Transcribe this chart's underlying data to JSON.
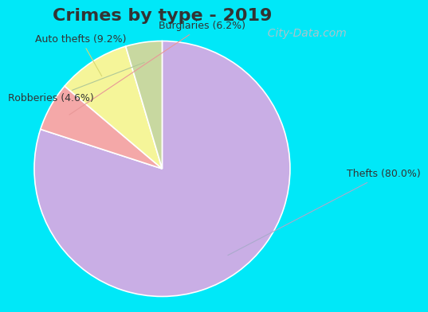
{
  "title": "Crimes by type - 2019",
  "title_fontsize": 16,
  "title_fontweight": "bold",
  "title_color": "#333333",
  "slices": [
    {
      "label": "Thefts",
      "pct": 80.0,
      "color": "#c9aee5"
    },
    {
      "label": "Burglaries",
      "pct": 6.2,
      "color": "#f4a8a8"
    },
    {
      "label": "Auto thefts",
      "pct": 9.2,
      "color": "#f5f599"
    },
    {
      "label": "Robberies",
      "pct": 4.6,
      "color": "#c8d8a0"
    }
  ],
  "border_color": "#00e8f8",
  "border_width": 18,
  "bg_color_left": "#c8e8d8",
  "bg_color_right": "#e8f4f0",
  "watermark_text": "  City-Data.com",
  "watermark_color": "#aac4cc",
  "watermark_fontsize": 10,
  "label_fontsize": 9,
  "label_color": "#333333",
  "line_color_thefts": "#aaaacc",
  "line_color_burglaries": "#e89898",
  "line_color_auto": "#d8d870",
  "line_color_robberies": "#b0c898"
}
